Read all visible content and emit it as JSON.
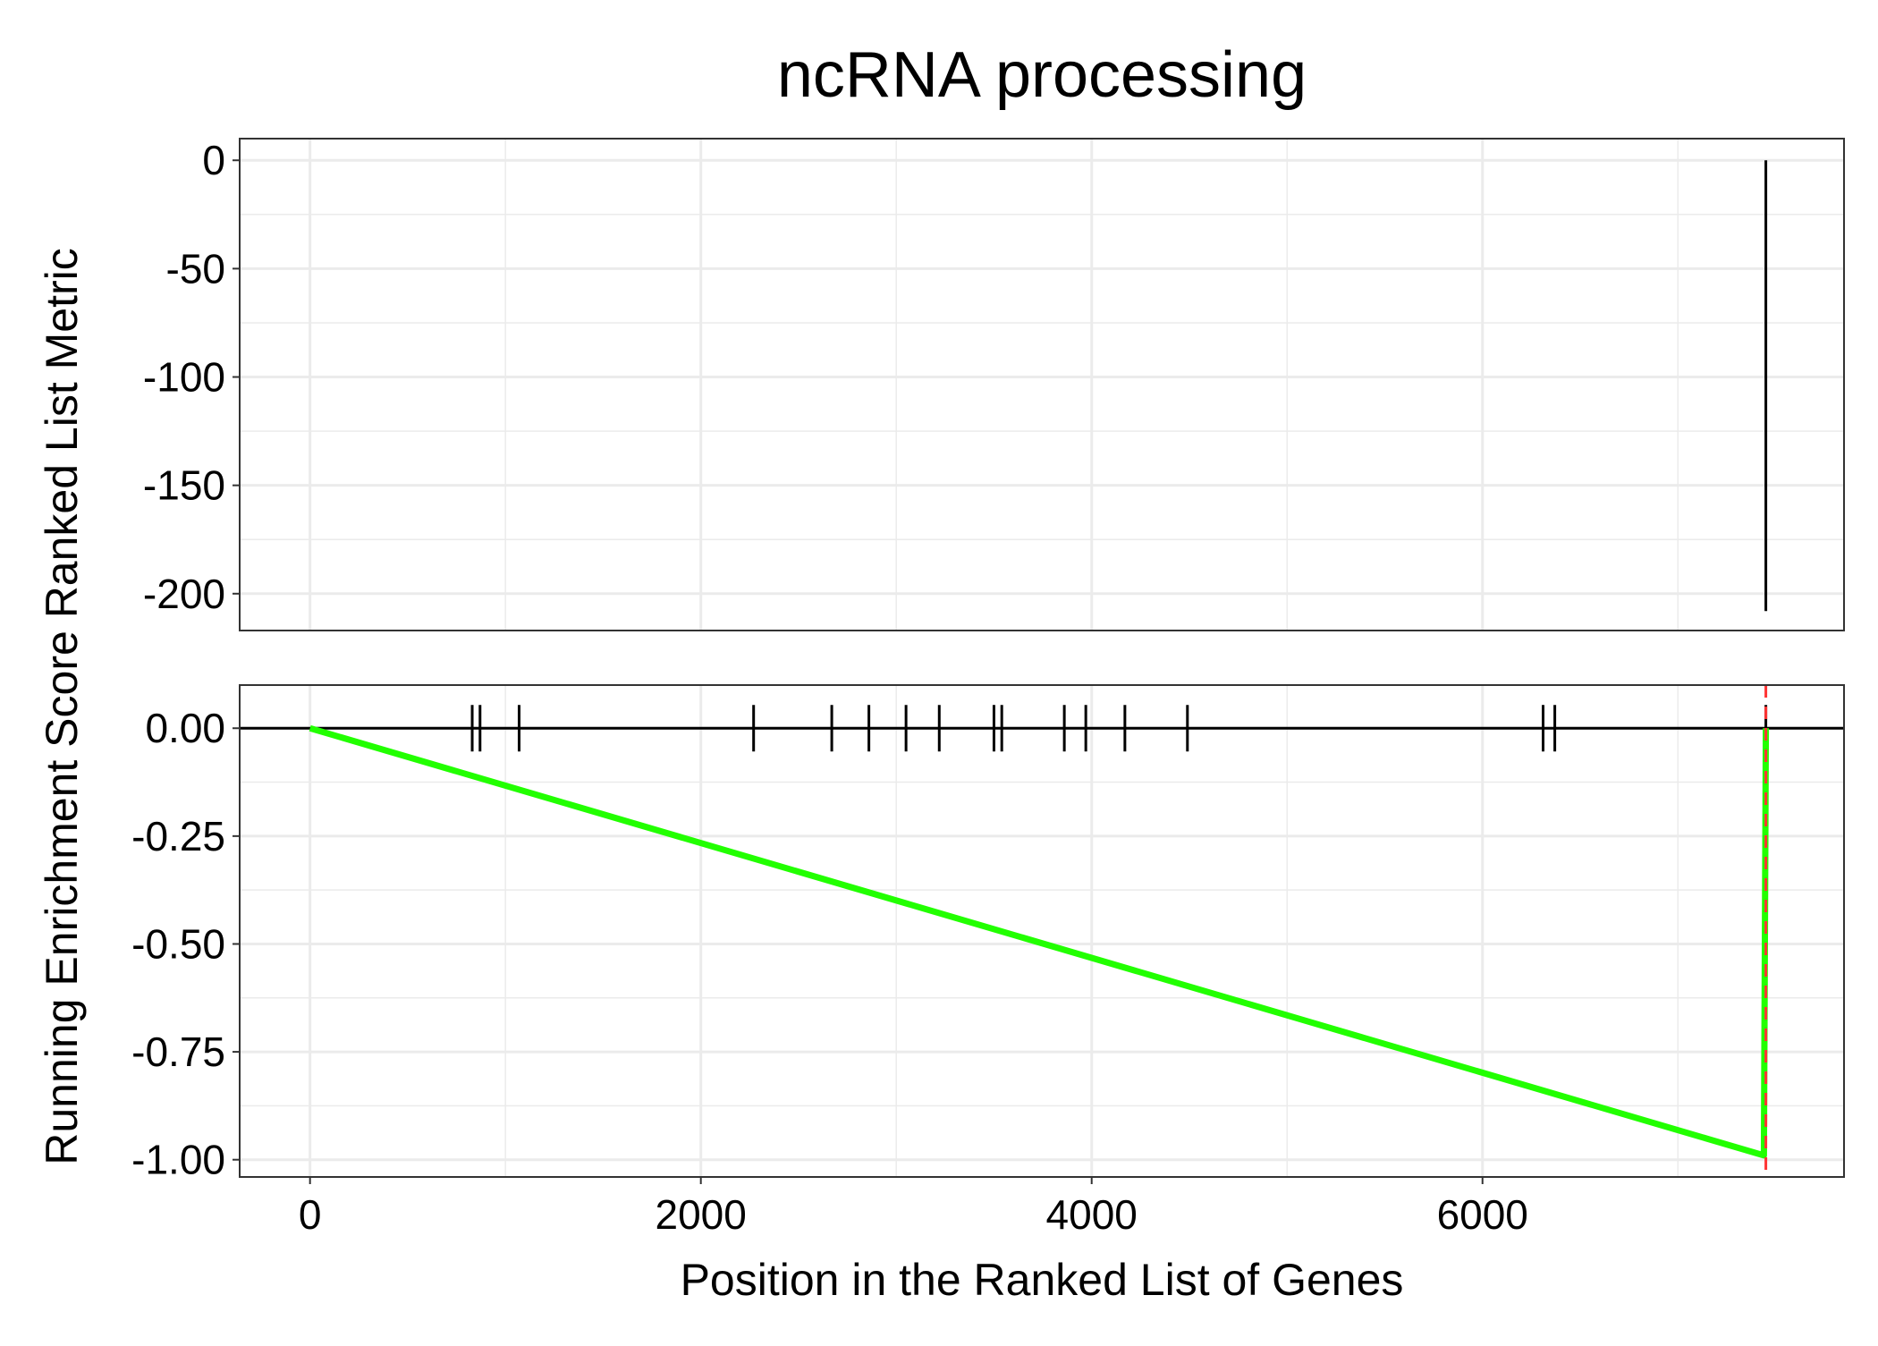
{
  "chart_data": {
    "type": "line",
    "title": "ncRNA processing",
    "xlabel": "Position in the Ranked List of Genes",
    "ylabel": "Running Enrichment Score Ranked List Metric",
    "xlim": [
      -360,
      7850
    ],
    "x_ticks": [
      0,
      2000,
      4000,
      6000
    ],
    "x_tick_labels": [
      "0",
      "2000",
      "4000",
      "6000"
    ],
    "grid": true,
    "panels": {
      "metric": {
        "ylim": [
          -217,
          10
        ],
        "y_ticks": [
          0,
          -50,
          -100,
          -150,
          -200
        ],
        "y_tick_labels": [
          "0",
          "-50",
          "-100",
          "-150",
          "-200"
        ],
        "bars": [
          {
            "x": 7450,
            "y0": 0,
            "y1": -208
          }
        ]
      },
      "enrichment": {
        "ylim": [
          -1.04,
          0.1
        ],
        "y_ticks": [
          0,
          -0.25,
          -0.5,
          -0.75,
          -1
        ],
        "y_tick_labels": [
          "0.00",
          "-0.25",
          "-0.50",
          "-0.75",
          "-1.00"
        ],
        "series": [
          {
            "x": [
              0,
              7440,
              7450
            ],
            "y": [
              0,
              -0.99,
              0
            ],
            "color": "#22ff00"
          }
        ],
        "hit_positions": [
          830,
          870,
          1070,
          2270,
          2670,
          2860,
          3050,
          3220,
          3500,
          3540,
          3860,
          3970,
          4170,
          4490,
          6310,
          6370,
          7450
        ],
        "peak_position": 7450,
        "zero_line": true
      }
    },
    "colors": {
      "curve": "#22ff00",
      "peak_line": "#ff3333",
      "grid": "#ebebeb",
      "axis": "#000000"
    }
  }
}
